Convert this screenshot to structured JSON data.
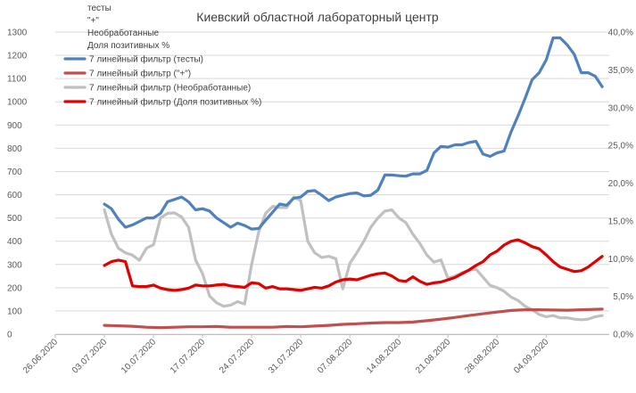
{
  "chart_data": {
    "type": "line",
    "title": "Киевский областной лабораторный центр",
    "legend_position": "top-left",
    "legend_extra_labels": [
      "тесты",
      "\"+\"",
      "Необработанные",
      "Доля позитивных %"
    ],
    "x_tick_labels": [
      "26.06.2020",
      "03.07.2020",
      "10.07.2020",
      "17.07.2020",
      "24.07.2020",
      "31.07.2020",
      "07.08.2020",
      "14.08.2020",
      "21.08.2020",
      "28.08.2020",
      "04.09.2020"
    ],
    "x_start": "2020-06-26",
    "y_left": {
      "ylim": [
        0,
        1300
      ],
      "ticks": [
        0,
        100,
        200,
        300,
        400,
        500,
        600,
        700,
        800,
        900,
        1000,
        1100,
        1200,
        1300
      ]
    },
    "y_right": {
      "ylim": [
        0,
        40
      ],
      "ticks": [
        "0,0%",
        "5,0%",
        "10,0%",
        "15,0%",
        "20,0%",
        "25,0%",
        "30,0%",
        "35,0%",
        "40,0%"
      ]
    },
    "grid": {
      "horizontal": true,
      "vertical": false
    },
    "series": [
      {
        "name": "7 линейный фильтр (тесты)",
        "axis": "left",
        "color": "#4f81bd",
        "values": [
          [
            "2020-07-03",
            560
          ],
          [
            "2020-07-04",
            540
          ],
          [
            "2020-07-05",
            495
          ],
          [
            "2020-07-06",
            460
          ],
          [
            "2020-07-07",
            470
          ],
          [
            "2020-07-08",
            485
          ],
          [
            "2020-07-09",
            500
          ],
          [
            "2020-07-10",
            500
          ],
          [
            "2020-07-11",
            520
          ],
          [
            "2020-07-12",
            570
          ],
          [
            "2020-07-13",
            580
          ],
          [
            "2020-07-14",
            590
          ],
          [
            "2020-07-15",
            570
          ],
          [
            "2020-07-16",
            535
          ],
          [
            "2020-07-17",
            540
          ],
          [
            "2020-07-18",
            530
          ],
          [
            "2020-07-19",
            500
          ],
          [
            "2020-07-20",
            480
          ],
          [
            "2020-07-21",
            460
          ],
          [
            "2020-07-22",
            478
          ],
          [
            "2020-07-23",
            468
          ],
          [
            "2020-07-24",
            452
          ],
          [
            "2020-07-25",
            455
          ],
          [
            "2020-07-26",
            490
          ],
          [
            "2020-07-27",
            525
          ],
          [
            "2020-07-28",
            560
          ],
          [
            "2020-07-29",
            555
          ],
          [
            "2020-07-30",
            585
          ],
          [
            "2020-07-31",
            590
          ],
          [
            "2020-08-01",
            615
          ],
          [
            "2020-08-02",
            618
          ],
          [
            "2020-08-03",
            598
          ],
          [
            "2020-08-04",
            575
          ],
          [
            "2020-08-05",
            590
          ],
          [
            "2020-08-06",
            598
          ],
          [
            "2020-08-07",
            605
          ],
          [
            "2020-08-08",
            608
          ],
          [
            "2020-08-09",
            595
          ],
          [
            "2020-08-10",
            598
          ],
          [
            "2020-08-11",
            620
          ],
          [
            "2020-08-12",
            685
          ],
          [
            "2020-08-13",
            685
          ],
          [
            "2020-08-14",
            682
          ],
          [
            "2020-08-15",
            680
          ],
          [
            "2020-08-16",
            690
          ],
          [
            "2020-08-17",
            690
          ],
          [
            "2020-08-18",
            705
          ],
          [
            "2020-08-19",
            780
          ],
          [
            "2020-08-20",
            808
          ],
          [
            "2020-08-21",
            805
          ],
          [
            "2020-08-22",
            815
          ],
          [
            "2020-08-23",
            815
          ],
          [
            "2020-08-24",
            825
          ],
          [
            "2020-08-25",
            830
          ],
          [
            "2020-08-26",
            775
          ],
          [
            "2020-08-27",
            765
          ],
          [
            "2020-08-28",
            780
          ],
          [
            "2020-08-29",
            788
          ],
          [
            "2020-08-30",
            870
          ],
          [
            "2020-08-31",
            940
          ],
          [
            "2020-09-01",
            1015
          ],
          [
            "2020-09-02",
            1095
          ],
          [
            "2020-09-03",
            1125
          ],
          [
            "2020-09-04",
            1180
          ],
          [
            "2020-09-05",
            1275
          ],
          [
            "2020-09-06",
            1275
          ],
          [
            "2020-09-07",
            1245
          ],
          [
            "2020-09-08",
            1205
          ],
          [
            "2020-09-09",
            1125
          ],
          [
            "2020-09-10",
            1125
          ],
          [
            "2020-09-11",
            1110
          ],
          [
            "2020-09-12",
            1065
          ]
        ]
      },
      {
        "name": "7 линейный фильтр (\"+\")",
        "axis": "left",
        "color": "#c0504d",
        "values": [
          [
            "2020-07-03",
            38
          ],
          [
            "2020-07-05",
            36
          ],
          [
            "2020-07-07",
            34
          ],
          [
            "2020-07-09",
            30
          ],
          [
            "2020-07-11",
            28
          ],
          [
            "2020-07-13",
            30
          ],
          [
            "2020-07-15",
            32
          ],
          [
            "2020-07-17",
            32
          ],
          [
            "2020-07-19",
            33
          ],
          [
            "2020-07-21",
            30
          ],
          [
            "2020-07-23",
            30
          ],
          [
            "2020-07-25",
            30
          ],
          [
            "2020-07-27",
            30
          ],
          [
            "2020-07-29",
            33
          ],
          [
            "2020-07-31",
            32
          ],
          [
            "2020-08-02",
            35
          ],
          [
            "2020-08-04",
            38
          ],
          [
            "2020-08-06",
            42
          ],
          [
            "2020-08-08",
            45
          ],
          [
            "2020-08-10",
            48
          ],
          [
            "2020-08-12",
            50
          ],
          [
            "2020-08-14",
            50
          ],
          [
            "2020-08-16",
            52
          ],
          [
            "2020-08-18",
            58
          ],
          [
            "2020-08-20",
            65
          ],
          [
            "2020-08-22",
            72
          ],
          [
            "2020-08-24",
            80
          ],
          [
            "2020-08-26",
            88
          ],
          [
            "2020-08-28",
            95
          ],
          [
            "2020-08-30",
            102
          ],
          [
            "2020-09-01",
            105
          ],
          [
            "2020-09-03",
            105
          ],
          [
            "2020-09-05",
            104
          ],
          [
            "2020-09-07",
            103
          ],
          [
            "2020-09-09",
            105
          ],
          [
            "2020-09-12",
            108
          ]
        ]
      },
      {
        "name": "7 линейный фильтр (Необработанные)",
        "axis": "left",
        "color": "#c0c0c0",
        "values": [
          [
            "2020-07-03",
            535
          ],
          [
            "2020-07-04",
            430
          ],
          [
            "2020-07-05",
            370
          ],
          [
            "2020-07-06",
            350
          ],
          [
            "2020-07-07",
            340
          ],
          [
            "2020-07-08",
            318
          ],
          [
            "2020-07-09",
            370
          ],
          [
            "2020-07-10",
            385
          ],
          [
            "2020-07-11",
            500
          ],
          [
            "2020-07-12",
            520
          ],
          [
            "2020-07-13",
            522
          ],
          [
            "2020-07-14",
            505
          ],
          [
            "2020-07-15",
            460
          ],
          [
            "2020-07-16",
            320
          ],
          [
            "2020-07-17",
            260
          ],
          [
            "2020-07-18",
            165
          ],
          [
            "2020-07-19",
            135
          ],
          [
            "2020-07-20",
            120
          ],
          [
            "2020-07-21",
            125
          ],
          [
            "2020-07-22",
            140
          ],
          [
            "2020-07-23",
            130
          ],
          [
            "2020-07-24",
            300
          ],
          [
            "2020-07-25",
            440
          ],
          [
            "2020-07-26",
            520
          ],
          [
            "2020-07-27",
            550
          ],
          [
            "2020-07-28",
            545
          ],
          [
            "2020-07-29",
            545
          ],
          [
            "2020-07-30",
            590
          ],
          [
            "2020-07-31",
            575
          ],
          [
            "2020-08-01",
            400
          ],
          [
            "2020-08-02",
            350
          ],
          [
            "2020-08-03",
            330
          ],
          [
            "2020-08-04",
            335
          ],
          [
            "2020-08-05",
            325
          ],
          [
            "2020-08-06",
            195
          ],
          [
            "2020-08-07",
            305
          ],
          [
            "2020-08-08",
            350
          ],
          [
            "2020-08-09",
            400
          ],
          [
            "2020-08-10",
            460
          ],
          [
            "2020-08-11",
            500
          ],
          [
            "2020-08-12",
            530
          ],
          [
            "2020-08-13",
            535
          ],
          [
            "2020-08-14",
            500
          ],
          [
            "2020-08-15",
            480
          ],
          [
            "2020-08-16",
            430
          ],
          [
            "2020-08-17",
            390
          ],
          [
            "2020-08-18",
            340
          ],
          [
            "2020-08-19",
            310
          ],
          [
            "2020-08-20",
            320
          ],
          [
            "2020-08-21",
            240
          ],
          [
            "2020-08-22",
            250
          ],
          [
            "2020-08-23",
            265
          ],
          [
            "2020-08-24",
            275
          ],
          [
            "2020-08-25",
            280
          ],
          [
            "2020-08-26",
            245
          ],
          [
            "2020-08-27",
            210
          ],
          [
            "2020-08-28",
            200
          ],
          [
            "2020-08-29",
            185
          ],
          [
            "2020-08-30",
            160
          ],
          [
            "2020-08-31",
            145
          ],
          [
            "2020-09-01",
            120
          ],
          [
            "2020-09-02",
            105
          ],
          [
            "2020-09-03",
            85
          ],
          [
            "2020-09-04",
            75
          ],
          [
            "2020-09-05",
            80
          ],
          [
            "2020-09-06",
            70
          ],
          [
            "2020-09-07",
            70
          ],
          [
            "2020-09-08",
            65
          ],
          [
            "2020-09-09",
            62
          ],
          [
            "2020-09-10",
            65
          ],
          [
            "2020-09-11",
            75
          ],
          [
            "2020-09-12",
            80
          ]
        ]
      },
      {
        "name": "7 линейный фильтр (Доля позитивных %)",
        "axis": "right",
        "color": "#e00000",
        "values": [
          [
            "2020-07-03",
            9.1
          ],
          [
            "2020-07-04",
            9.6
          ],
          [
            "2020-07-05",
            9.8
          ],
          [
            "2020-07-06",
            9.6
          ],
          [
            "2020-07-07",
            6.4
          ],
          [
            "2020-07-08",
            6.3
          ],
          [
            "2020-07-09",
            6.3
          ],
          [
            "2020-07-10",
            6.5
          ],
          [
            "2020-07-11",
            6.1
          ],
          [
            "2020-07-12",
            5.9
          ],
          [
            "2020-07-13",
            5.8
          ],
          [
            "2020-07-14",
            5.9
          ],
          [
            "2020-07-15",
            6.1
          ],
          [
            "2020-07-16",
            6.5
          ],
          [
            "2020-07-17",
            6.4
          ],
          [
            "2020-07-18",
            6.4
          ],
          [
            "2020-07-19",
            6.5
          ],
          [
            "2020-07-20",
            6.6
          ],
          [
            "2020-07-21",
            6.4
          ],
          [
            "2020-07-22",
            6.3
          ],
          [
            "2020-07-23",
            6.2
          ],
          [
            "2020-07-24",
            6.8
          ],
          [
            "2020-07-25",
            6.7
          ],
          [
            "2020-07-26",
            6.1
          ],
          [
            "2020-07-27",
            6.3
          ],
          [
            "2020-07-28",
            6.0
          ],
          [
            "2020-07-29",
            6.0
          ],
          [
            "2020-07-30",
            5.9
          ],
          [
            "2020-07-31",
            5.8
          ],
          [
            "2020-08-01",
            6.0
          ],
          [
            "2020-08-02",
            6.2
          ],
          [
            "2020-08-03",
            6.1
          ],
          [
            "2020-08-04",
            6.4
          ],
          [
            "2020-08-05",
            6.9
          ],
          [
            "2020-08-06",
            7.2
          ],
          [
            "2020-08-07",
            7.3
          ],
          [
            "2020-08-08",
            7.2
          ],
          [
            "2020-08-09",
            7.5
          ],
          [
            "2020-08-10",
            7.8
          ],
          [
            "2020-08-11",
            8.0
          ],
          [
            "2020-08-12",
            8.1
          ],
          [
            "2020-08-13",
            7.7
          ],
          [
            "2020-08-14",
            7.1
          ],
          [
            "2020-08-15",
            7.0
          ],
          [
            "2020-08-16",
            7.6
          ],
          [
            "2020-08-17",
            7.0
          ],
          [
            "2020-08-18",
            6.6
          ],
          [
            "2020-08-19",
            6.8
          ],
          [
            "2020-08-20",
            6.9
          ],
          [
            "2020-08-21",
            7.2
          ],
          [
            "2020-08-22",
            7.5
          ],
          [
            "2020-08-23",
            8.0
          ],
          [
            "2020-08-24",
            8.5
          ],
          [
            "2020-08-25",
            9.1
          ],
          [
            "2020-08-26",
            9.6
          ],
          [
            "2020-08-27",
            10.5
          ],
          [
            "2020-08-28",
            11.0
          ],
          [
            "2020-08-29",
            11.8
          ],
          [
            "2020-08-30",
            12.3
          ],
          [
            "2020-08-31",
            12.5
          ],
          [
            "2020-09-01",
            12.1
          ],
          [
            "2020-09-02",
            11.6
          ],
          [
            "2020-09-03",
            11.3
          ],
          [
            "2020-09-04",
            10.5
          ],
          [
            "2020-09-05",
            9.6
          ],
          [
            "2020-09-06",
            8.9
          ],
          [
            "2020-09-07",
            8.6
          ],
          [
            "2020-09-08",
            8.3
          ],
          [
            "2020-09-09",
            8.4
          ],
          [
            "2020-09-10",
            8.9
          ],
          [
            "2020-09-11",
            9.6
          ],
          [
            "2020-09-12",
            10.3
          ]
        ]
      }
    ]
  }
}
